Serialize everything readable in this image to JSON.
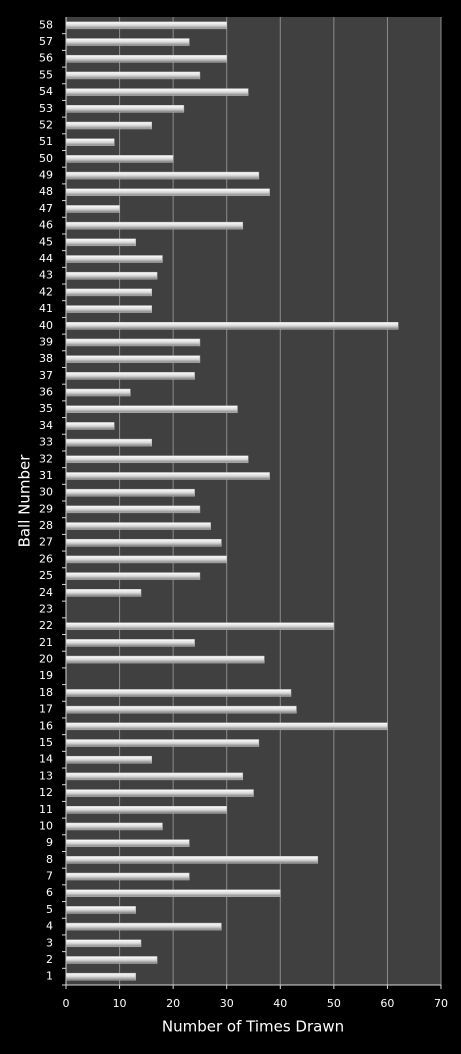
{
  "chart_data": {
    "type": "bar",
    "orientation": "horizontal",
    "x_label": "Number of Times Drawn",
    "y_label": "Ball Number",
    "categories": [
      "1",
      "2",
      "3",
      "4",
      "5",
      "6",
      "7",
      "8",
      "9",
      "10",
      "11",
      "12",
      "13",
      "14",
      "15",
      "16",
      "17",
      "18",
      "19",
      "20",
      "21",
      "22",
      "23",
      "24",
      "25",
      "26",
      "27",
      "28",
      "29",
      "30",
      "31",
      "32",
      "33",
      "34",
      "35",
      "36",
      "37",
      "38",
      "39",
      "40",
      "41",
      "42",
      "43",
      "44",
      "45",
      "46",
      "47",
      "48",
      "49",
      "50",
      "51",
      "52",
      "53",
      "54",
      "55",
      "56",
      "57",
      "58"
    ],
    "values": [
      13,
      17,
      14,
      29,
      13,
      40,
      23,
      47,
      23,
      18,
      30,
      35,
      33,
      16,
      36,
      60,
      43,
      42,
      0,
      37,
      24,
      50,
      0,
      14,
      25,
      30,
      29,
      27,
      25,
      24,
      38,
      34,
      16,
      9,
      32,
      12,
      24,
      25,
      25,
      62,
      16,
      16,
      17,
      18,
      13,
      33,
      10,
      38,
      36,
      20,
      9,
      16,
      22,
      34,
      25,
      30,
      23,
      30
    ],
    "color": "#d9d9d9",
    "xlim": [
      0,
      70
    ],
    "xticks": [
      0,
      10,
      20,
      30,
      40,
      50,
      60,
      70
    ],
    "grid": true
  }
}
